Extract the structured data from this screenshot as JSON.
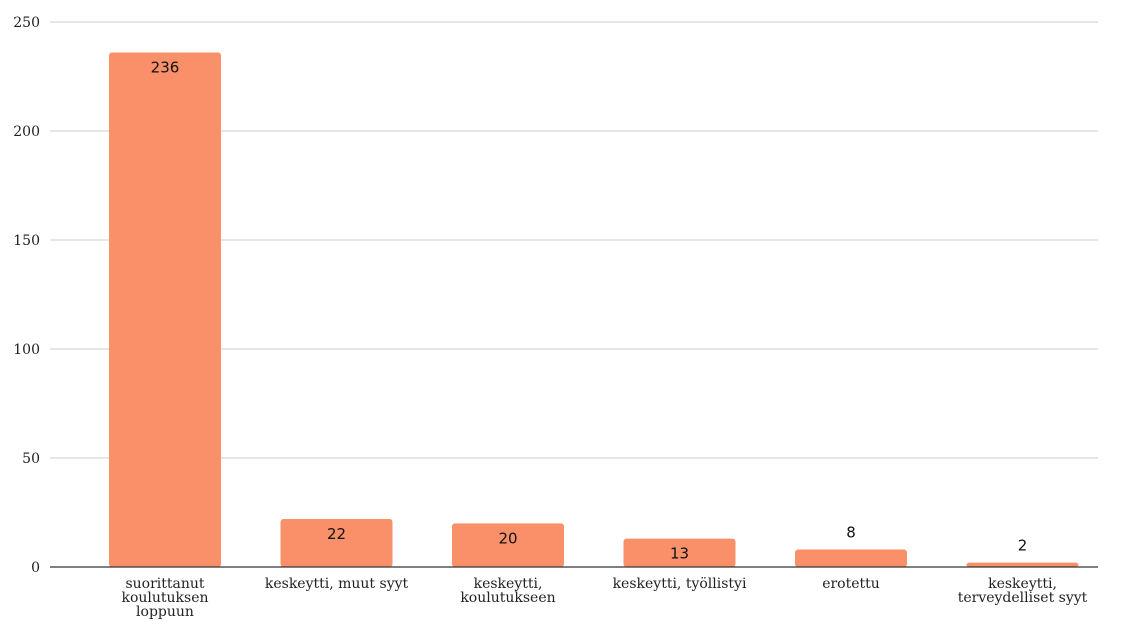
{
  "chart_data": {
    "type": "bar",
    "categories": [
      "suorittanut koulutuksen loppuun",
      "keskeytti, muut syyt",
      "keskeytti, koulutukseen",
      "keskeytti, työllistyi",
      "erotettu",
      "keskeytti, terveydelliset syyt"
    ],
    "category_lines": [
      [
        "suorittanut",
        "koulutuksen",
        "loppuun"
      ],
      [
        "keskeytti, muut syyt"
      ],
      [
        "keskeytti,",
        "koulutukseen"
      ],
      [
        "keskeytti, työllistyi"
      ],
      [
        "erotettu"
      ],
      [
        "keskeytti,",
        "terveydelliset syyt"
      ]
    ],
    "values": [
      236,
      22,
      20,
      13,
      8,
      2
    ],
    "data_labels": [
      "236",
      "22",
      "20",
      "13",
      "8",
      "2"
    ],
    "yticks": [
      0,
      50,
      100,
      150,
      200,
      250
    ],
    "ytick_labels": [
      "0",
      "50",
      "100",
      "150",
      "200",
      "250"
    ],
    "ylim": [
      0,
      250
    ],
    "title": "",
    "xlabel": "",
    "ylabel": "",
    "grid": true,
    "legend": "none",
    "bar_color": "#f99069"
  }
}
